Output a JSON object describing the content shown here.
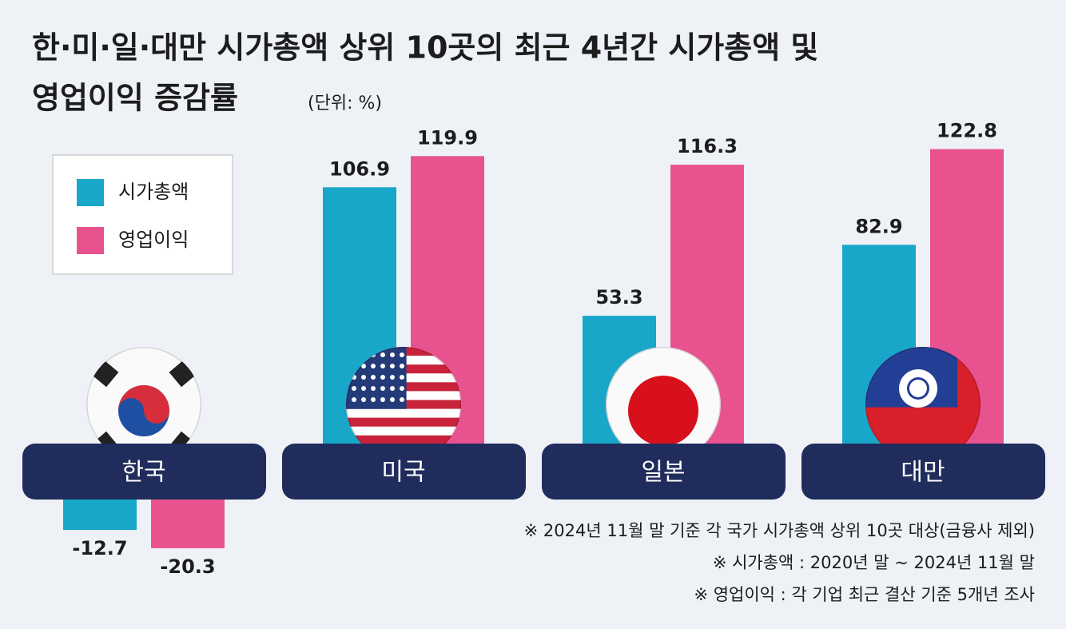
{
  "chart_data": {
    "type": "bar",
    "title": [
      "한·미·일·대만 시가총액 상위 10곳의 최근 4년간 시가총액 및",
      "영업이익 증감률"
    ],
    "unit": "(단위: %)",
    "categories": [
      "한국",
      "미국",
      "일본",
      "대만"
    ],
    "series": [
      {
        "name": "시가총액",
        "color": "#19a7c9",
        "values": [
          -12.7,
          106.9,
          53.3,
          82.9
        ]
      },
      {
        "name": "영업이익",
        "color": "#e8528f",
        "values": [
          -20.3,
          119.9,
          116.3,
          122.8
        ]
      }
    ],
    "notes": [
      "※ 2024년 11월 말 기준 각 국가 시가총액 상위 10곳 대상(금융사 제외)",
      "※ 시가총액 : 2020년 말 ~ 2024년 11월 말",
      "※ 영업이익 : 각 기업 최근 결산 기준 5개년 조사"
    ],
    "legend": "upper left"
  }
}
